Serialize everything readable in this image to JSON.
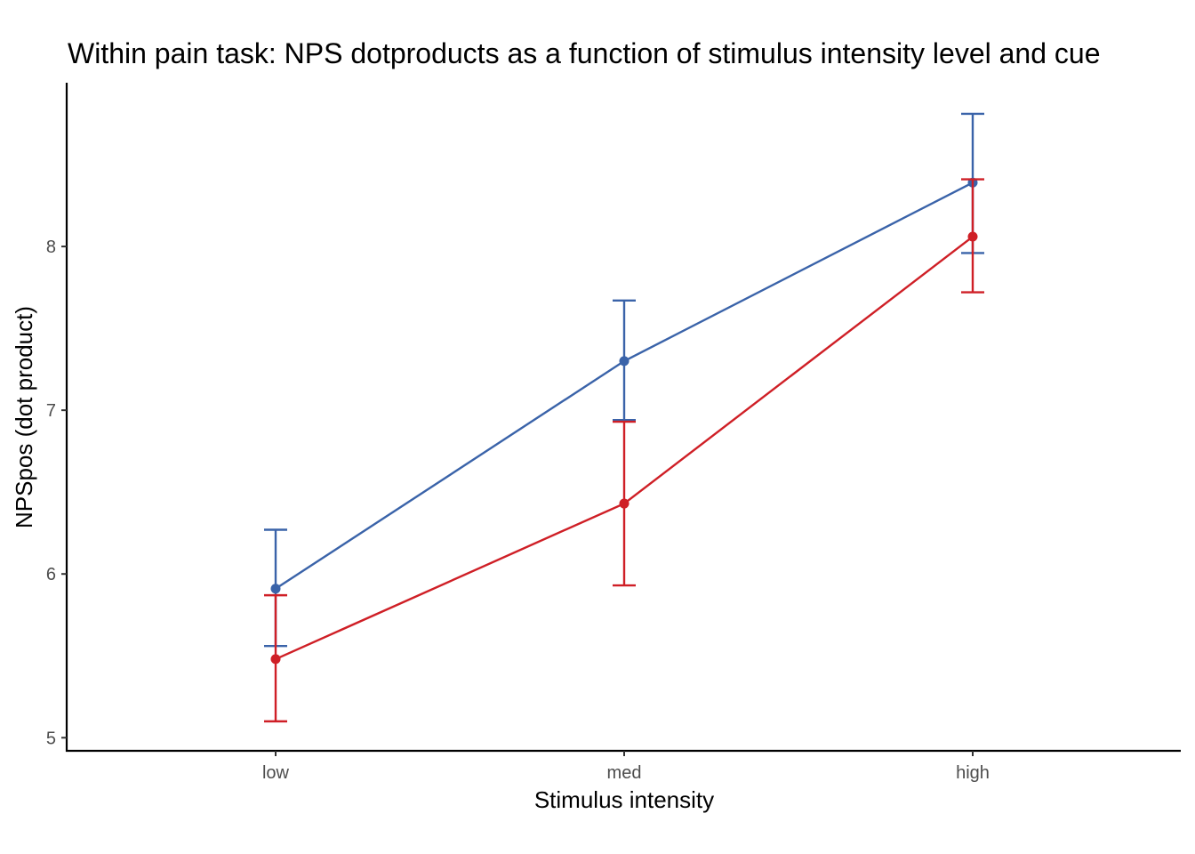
{
  "chart_data": {
    "type": "line",
    "title": "Within pain task: NPS dotproducts as a function of stimulus intensity level and cue",
    "xlabel": "Stimulus intensity",
    "ylabel": "NPSpos (dot product)",
    "categories": [
      "low",
      "med",
      "high"
    ],
    "ylim": [
      4.92,
      9.0
    ],
    "yticks": [
      5,
      6,
      7,
      8
    ],
    "ytick_labels": [
      "5",
      "6",
      "7",
      "8"
    ],
    "grid": false,
    "series": [
      {
        "name": "series-blue",
        "color": "#3a63a9",
        "values": [
          5.91,
          7.3,
          8.39
        ],
        "error_low": [
          5.56,
          6.94,
          7.96
        ],
        "error_high": [
          6.27,
          7.67,
          8.81
        ]
      },
      {
        "name": "series-red",
        "color": "#cf1f26",
        "values": [
          5.48,
          6.43,
          8.06
        ],
        "error_low": [
          5.1,
          5.93,
          7.72
        ],
        "error_high": [
          5.87,
          6.93,
          8.41
        ]
      }
    ]
  }
}
